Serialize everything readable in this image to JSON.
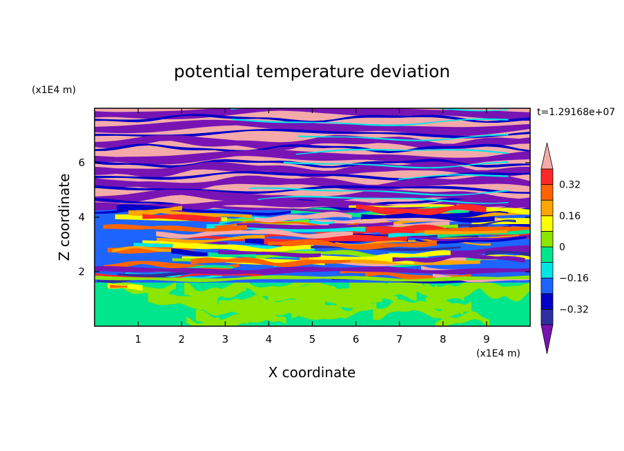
{
  "chart_data": {
    "type": "heatmap",
    "title": "potential temperature deviation",
    "xlabel": "X coordinate",
    "ylabel": "Z coordinate",
    "x_unit": "(x1E4 m)",
    "y_unit": "(x1E4 m)",
    "time_label": "t=1.29168e+07",
    "xlim": [
      0,
      10
    ],
    "ylim": [
      0,
      8
    ],
    "x_ticks": [
      "1",
      "2",
      "3",
      "4",
      "5",
      "6",
      "7",
      "8",
      "9"
    ],
    "y_ticks": [
      "2",
      "4",
      "6"
    ],
    "colorbar": {
      "levels": [
        -0.4,
        -0.32,
        -0.24,
        -0.16,
        -0.08,
        0,
        0.08,
        0.16,
        0.24,
        0.32,
        0.4
      ],
      "labels": [
        "0.32",
        "0.16",
        "0",
        "−0.16",
        "−0.32"
      ],
      "label_values": [
        0.32,
        0.16,
        0,
        -0.16,
        -0.32
      ],
      "colors_bottom_to_top": [
        "#2e2ea0",
        "#0000c8",
        "#1e64ff",
        "#00e6e6",
        "#00e68c",
        "#8ce600",
        "#ffff00",
        "#ffa500",
        "#ff6400",
        "#ff2828"
      ],
      "under_color": "#7814b4",
      "over_color": "#f5aaaa",
      "extend": "both"
    },
    "field_description_bands": [
      {
        "z_range": [
          0,
          1.5
        ],
        "dominant_values": [
          0,
          0.08
        ]
      },
      {
        "z_range": [
          1.5,
          4
        ],
        "dominant_values": [
          -0.4,
          0.4
        ]
      },
      {
        "z_range": [
          4,
          8
        ],
        "dominant_values": [
          -0.4,
          0.4
        ]
      }
    ]
  }
}
